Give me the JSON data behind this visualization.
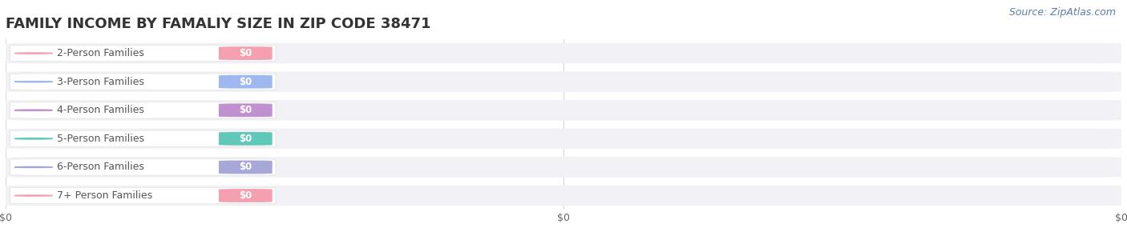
{
  "title": "FAMILY INCOME BY FAMALIY SIZE IN ZIP CODE 38471",
  "source": "Source: ZipAtlas.com",
  "categories": [
    "2-Person Families",
    "3-Person Families",
    "4-Person Families",
    "5-Person Families",
    "6-Person Families",
    "7+ Person Families"
  ],
  "values": [
    0,
    0,
    0,
    0,
    0,
    0
  ],
  "bar_colors": [
    "#f4a0b0",
    "#a0b8f0",
    "#c090d0",
    "#60c8b8",
    "#a8a8d8",
    "#f4a0b0"
  ],
  "value_labels": [
    "$0",
    "$0",
    "$0",
    "$0",
    "$0",
    "$0"
  ],
  "xlim": [
    0,
    1
  ],
  "background_color": "#ffffff",
  "bar_background": "#f2f2f6",
  "title_fontsize": 13,
  "source_fontsize": 9,
  "label_fontsize": 9,
  "x_tick_labels": [
    "$0",
    "$0",
    "$0"
  ],
  "x_tick_positions": [
    0.0,
    0.5,
    1.0
  ],
  "grid_color": "#d8d8d8",
  "label_text_color": "#555555",
  "value_text_color": "#ffffff",
  "source_color": "#5a7fa8"
}
